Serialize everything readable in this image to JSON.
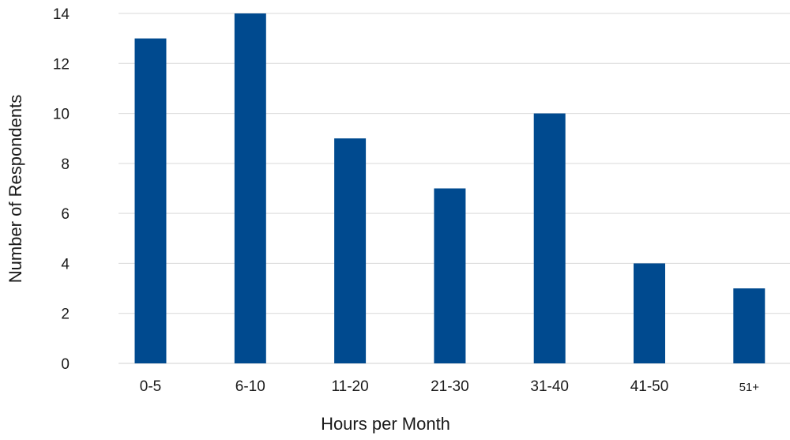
{
  "colors": {
    "bar": "#004a8f",
    "grid": "#d9d9d9"
  },
  "chart_data": {
    "type": "bar",
    "title": "",
    "xlabel": "Hours per Month",
    "ylabel": "Number of Respondents",
    "categories": [
      "0-5",
      "6-10",
      "11-20",
      "21-30",
      "31-40",
      "41-50",
      "51+"
    ],
    "values": [
      13,
      14,
      9,
      7,
      10,
      4,
      3
    ],
    "ylim": [
      0,
      14
    ],
    "yticks": [
      0,
      2,
      4,
      6,
      8,
      10,
      12,
      14
    ],
    "grid": true,
    "legend": "none"
  }
}
